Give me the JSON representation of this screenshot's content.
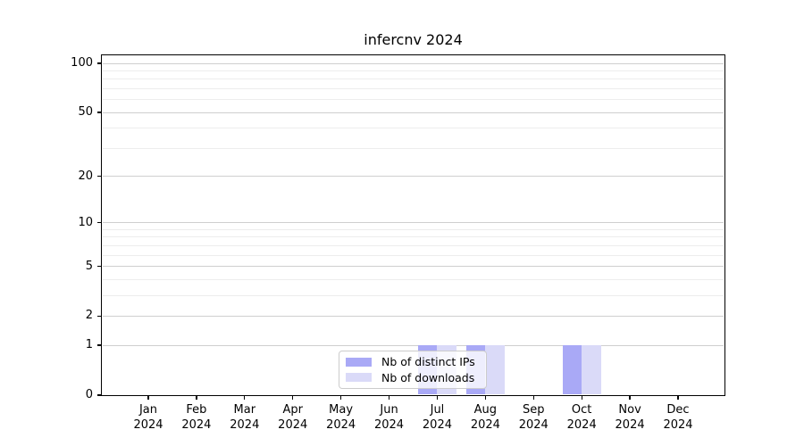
{
  "chart_data": {
    "type": "bar",
    "title": "infercnv 2024",
    "categories": [
      "Jan 2024",
      "Feb 2024",
      "Mar 2024",
      "Apr 2024",
      "May 2024",
      "Jun 2024",
      "Jul 2024",
      "Aug 2024",
      "Sep 2024",
      "Oct 2024",
      "Nov 2024",
      "Dec 2024"
    ],
    "series": [
      {
        "name": "Nb of distinct IPs",
        "color": "#a9a9f6",
        "values": [
          0,
          0,
          0,
          0,
          0,
          0,
          1,
          1,
          0,
          1,
          0,
          0
        ]
      },
      {
        "name": "Nb of downloads",
        "color": "#dadaf8",
        "values": [
          0,
          0,
          0,
          0,
          0,
          0,
          1,
          1,
          0,
          1,
          0,
          0
        ]
      }
    ],
    "xlabel": "",
    "ylabel": "",
    "yscale": "log1p",
    "ylim": [
      0,
      112
    ],
    "yticks": [
      0,
      1,
      2,
      5,
      10,
      20,
      50,
      100
    ],
    "minor_yticks": [
      3,
      4,
      6,
      7,
      8,
      9,
      30,
      40,
      60,
      70,
      80,
      90
    ],
    "grid": true,
    "legend_position": "lower center"
  },
  "colors": {
    "grid_major": "#cfcfcf",
    "grid_minor": "#ededed",
    "axis": "#000000",
    "background": "#ffffff"
  }
}
